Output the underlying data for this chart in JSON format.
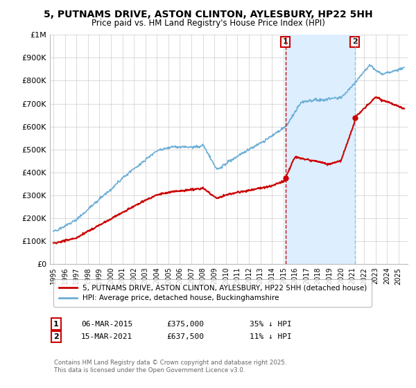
{
  "title": "5, PUTNAMS DRIVE, ASTON CLINTON, AYLESBURY, HP22 5HH",
  "subtitle": "Price paid vs. HM Land Registry's House Price Index (HPI)",
  "ylim": [
    0,
    1000000
  ],
  "yticks": [
    0,
    100000,
    200000,
    300000,
    400000,
    500000,
    600000,
    700000,
    800000,
    900000,
    1000000
  ],
  "ytick_labels": [
    "£0",
    "£100K",
    "£200K",
    "£300K",
    "£400K",
    "£500K",
    "£600K",
    "£700K",
    "£800K",
    "£900K",
    "£1M"
  ],
  "hpi_color": "#6baed6",
  "price_color": "#cc0000",
  "vline1_color": "#cc0000",
  "vline2_color": "#6baed6",
  "shade_color": "#ddeeff",
  "transaction1": {
    "date_num": 2015.18,
    "price": 375000,
    "label": "1",
    "text": "06-MAR-2015",
    "amount": "£375,000",
    "pct": "35% ↓ HPI"
  },
  "transaction2": {
    "date_num": 2021.21,
    "price": 637500,
    "label": "2",
    "text": "15-MAR-2021",
    "amount": "£637,500",
    "pct": "11% ↓ HPI"
  },
  "legend_line1": "5, PUTNAMS DRIVE, ASTON CLINTON, AYLESBURY, HP22 5HH (detached house)",
  "legend_line2": "HPI: Average price, detached house, Buckinghamshire",
  "footnote": "Contains HM Land Registry data © Crown copyright and database right 2025.\nThis data is licensed under the Open Government Licence v3.0.",
  "background_color": "#ffffff",
  "grid_color": "#cccccc",
  "xlim_left": 1994.7,
  "xlim_right": 2025.8
}
